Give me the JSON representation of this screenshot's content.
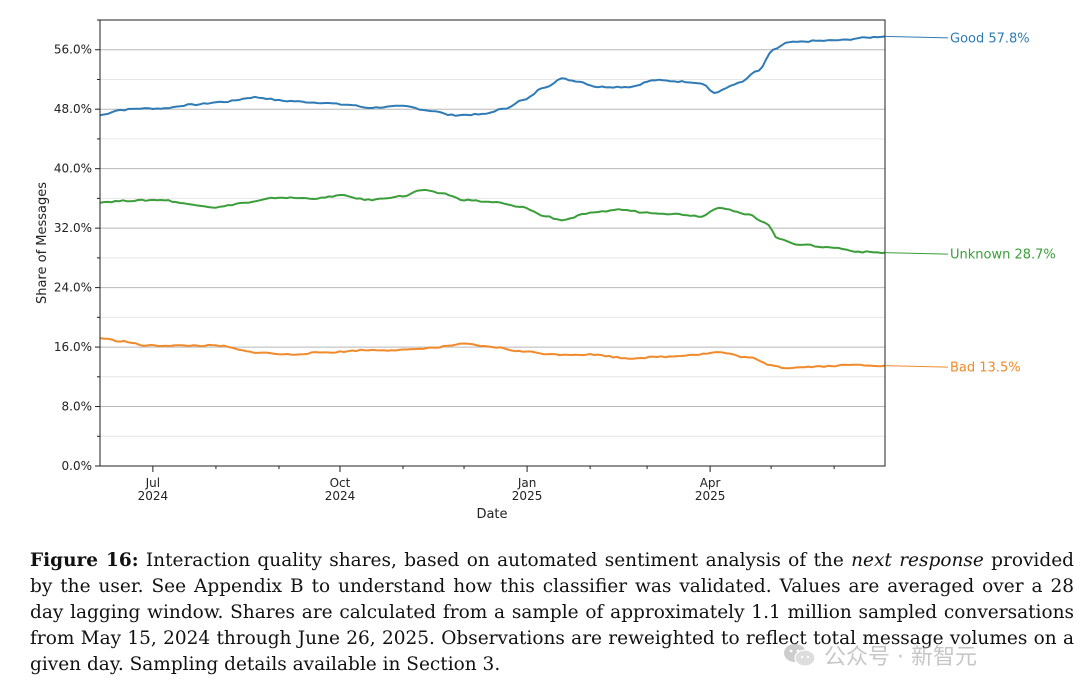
{
  "chart_data": {
    "type": "line",
    "title": "",
    "xlabel": "Date",
    "ylabel": "Share of Messages",
    "xlim": [
      "2024-06-05",
      "2025-06-26"
    ],
    "ylim": [
      0,
      60
    ],
    "y_ticks": [
      {
        "value": 0,
        "label": "0.0%"
      },
      {
        "value": 8,
        "label": "8.0%"
      },
      {
        "value": 16,
        "label": "16.0%"
      },
      {
        "value": 24,
        "label": "24.0%"
      },
      {
        "value": 32,
        "label": "32.0%"
      },
      {
        "value": 40,
        "label": "40.0%"
      },
      {
        "value": 48,
        "label": "48.0%"
      },
      {
        "value": 56,
        "label": "56.0%"
      }
    ],
    "x_ticks": [
      {
        "date": "2024-07-01",
        "label": "Jul",
        "year": "2024"
      },
      {
        "date": "2024-10-01",
        "label": "Oct",
        "year": "2024"
      },
      {
        "date": "2025-01-01",
        "label": "Jan",
        "year": "2025"
      },
      {
        "date": "2025-04-01",
        "label": "Apr",
        "year": "2025"
      }
    ],
    "grid": "horizontal",
    "series": [
      {
        "name": "Good",
        "color": "#2f7bb5",
        "end_label": "Good  57.8%",
        "points": [
          [
            "2024-06-05",
            47.2
          ],
          [
            "2024-06-15",
            47.9
          ],
          [
            "2024-06-25",
            48.1
          ],
          [
            "2024-07-05",
            48.1
          ],
          [
            "2024-07-20",
            48.6
          ],
          [
            "2024-08-05",
            49.0
          ],
          [
            "2024-08-20",
            49.6
          ],
          [
            "2024-09-05",
            49.1
          ],
          [
            "2024-09-20",
            48.9
          ],
          [
            "2024-10-05",
            48.6
          ],
          [
            "2024-10-15",
            48.2
          ],
          [
            "2024-11-01",
            48.4
          ],
          [
            "2024-11-15",
            47.8
          ],
          [
            "2024-11-25",
            47.2
          ],
          [
            "2024-12-10",
            47.3
          ],
          [
            "2024-12-20",
            48.0
          ],
          [
            "2024-12-30",
            49.2
          ],
          [
            "2025-01-10",
            51.0
          ],
          [
            "2025-01-18",
            52.1
          ],
          [
            "2025-01-25",
            51.8
          ],
          [
            "2025-02-05",
            51.0
          ],
          [
            "2025-02-20",
            51.0
          ],
          [
            "2025-03-05",
            51.9
          ],
          [
            "2025-03-20",
            51.7
          ],
          [
            "2025-03-28",
            51.5
          ],
          [
            "2025-04-03",
            50.2
          ],
          [
            "2025-04-15",
            51.5
          ],
          [
            "2025-04-25",
            53.2
          ],
          [
            "2025-05-02",
            56.0
          ],
          [
            "2025-05-10",
            57.0
          ],
          [
            "2025-05-25",
            57.2
          ],
          [
            "2025-06-05",
            57.3
          ],
          [
            "2025-06-15",
            57.6
          ],
          [
            "2025-06-26",
            57.8
          ]
        ]
      },
      {
        "name": "Unknown",
        "color": "#3a9e3a",
        "end_label": "Unknown  28.7%",
        "points": [
          [
            "2024-06-05",
            35.5
          ],
          [
            "2024-06-20",
            35.7
          ],
          [
            "2024-07-05",
            35.8
          ],
          [
            "2024-07-20",
            35.2
          ],
          [
            "2024-08-01",
            34.8
          ],
          [
            "2024-08-15",
            35.4
          ],
          [
            "2024-09-01",
            36.1
          ],
          [
            "2024-09-20",
            36.0
          ],
          [
            "2024-10-01",
            36.4
          ],
          [
            "2024-10-15",
            35.8
          ],
          [
            "2024-11-01",
            36.3
          ],
          [
            "2024-11-10",
            37.1
          ],
          [
            "2024-11-20",
            36.7
          ],
          [
            "2024-12-01",
            35.8
          ],
          [
            "2024-12-15",
            35.5
          ],
          [
            "2024-12-30",
            34.8
          ],
          [
            "2025-01-10",
            33.6
          ],
          [
            "2025-01-18",
            33.1
          ],
          [
            "2025-02-01",
            34.0
          ],
          [
            "2025-02-15",
            34.5
          ],
          [
            "2025-03-01",
            34.1
          ],
          [
            "2025-03-15",
            33.9
          ],
          [
            "2025-03-28",
            33.6
          ],
          [
            "2025-04-05",
            34.8
          ],
          [
            "2025-04-20",
            33.8
          ],
          [
            "2025-04-28",
            32.8
          ],
          [
            "2025-05-05",
            30.5
          ],
          [
            "2025-05-15",
            29.8
          ],
          [
            "2025-05-30",
            29.4
          ],
          [
            "2025-06-15",
            28.8
          ],
          [
            "2025-06-26",
            28.7
          ]
        ]
      },
      {
        "name": "Bad",
        "color": "#f08a2a",
        "end_label": "Bad  13.5%",
        "points": [
          [
            "2024-06-05",
            17.2
          ],
          [
            "2024-06-15",
            16.8
          ],
          [
            "2024-06-28",
            16.2
          ],
          [
            "2024-07-15",
            16.2
          ],
          [
            "2024-08-01",
            16.2
          ],
          [
            "2024-08-20",
            15.3
          ],
          [
            "2024-09-05",
            15.0
          ],
          [
            "2024-09-25",
            15.3
          ],
          [
            "2024-10-15",
            15.6
          ],
          [
            "2024-11-01",
            15.6
          ],
          [
            "2024-11-15",
            15.9
          ],
          [
            "2024-12-01",
            16.4
          ],
          [
            "2024-12-15",
            16.0
          ],
          [
            "2024-12-30",
            15.4
          ],
          [
            "2025-01-15",
            15.0
          ],
          [
            "2025-02-01",
            15.0
          ],
          [
            "2025-02-20",
            14.5
          ],
          [
            "2025-03-10",
            14.7
          ],
          [
            "2025-03-25",
            15.0
          ],
          [
            "2025-04-05",
            15.3
          ],
          [
            "2025-04-20",
            14.6
          ],
          [
            "2025-05-01",
            13.6
          ],
          [
            "2025-05-08",
            13.2
          ],
          [
            "2025-05-25",
            13.4
          ],
          [
            "2025-06-10",
            13.6
          ],
          [
            "2025-06-26",
            13.5
          ]
        ]
      }
    ]
  },
  "caption": {
    "label": "Figure 16:",
    "text_before": " Interaction quality shares, based on automated sentiment analysis of the ",
    "emphasis": "next response",
    "text_after": " provided by the user. See Appendix B to understand how this classifier was validated. Values are averaged over a 28 day lagging window. Shares are calculated from a sample of approximately 1.1 million sampled conversations from May 15, 2024 through June 26, 2025. Observations are reweighted to reflect total message volumes on a given day. Sampling details available in Section 3."
  },
  "watermark": {
    "text": "公众号 · 新智元",
    "icon": "wechat-icon"
  }
}
